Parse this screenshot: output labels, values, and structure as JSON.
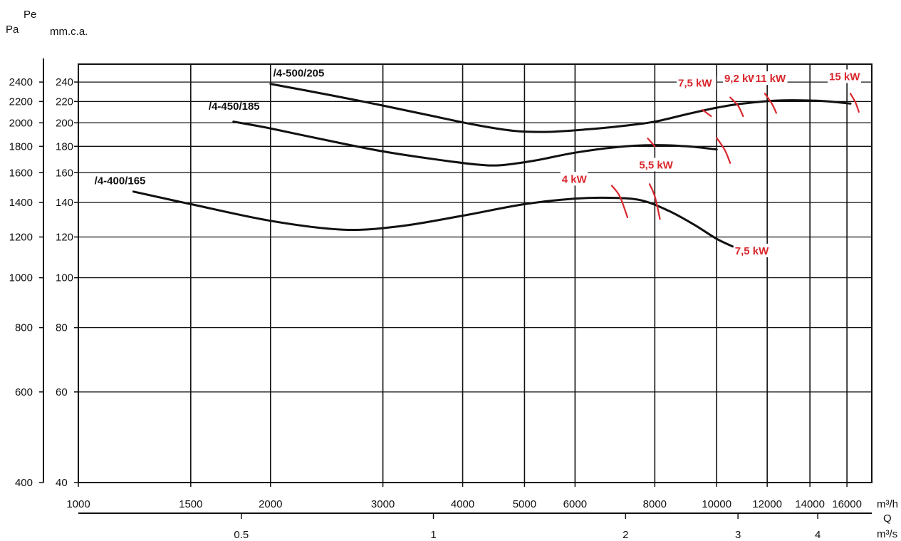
{
  "chart_data": {
    "type": "line",
    "x_scale": "log",
    "y_scale": "log",
    "grid": true,
    "xlim": [
      1000,
      17500
    ],
    "ylim_mmca": [
      40,
      260
    ],
    "units": {
      "y_left_top": "Pe",
      "y_left": "Pa",
      "y_right": "mm.c.a.",
      "x_flow_h": "m³/h",
      "x_q": "Q",
      "x_flow_s": "m³/s"
    },
    "x_ticks": [
      {
        "value": 1000,
        "label": "1000"
      },
      {
        "value": 1500,
        "label": "1500"
      },
      {
        "value": 2000,
        "label": "2000"
      },
      {
        "value": 3000,
        "label": "3000"
      },
      {
        "value": 4000,
        "label": "4000"
      },
      {
        "value": 5000,
        "label": "5000"
      },
      {
        "value": 6000,
        "label": "6000"
      },
      {
        "value": 8000,
        "label": "8000"
      },
      {
        "value": 10000,
        "label": "10000"
      },
      {
        "value": 12000,
        "label": "12000"
      },
      {
        "value": 14000,
        "label": "14000"
      },
      {
        "value": 16000,
        "label": "16000"
      }
    ],
    "x_grid": [
      1000,
      1500,
      2000,
      3000,
      4000,
      5000,
      6000,
      8000,
      10000,
      12000,
      14000,
      16000,
      17500
    ],
    "x2_ticks": [
      {
        "value": 1800,
        "label": "0.5"
      },
      {
        "value": 3600,
        "label": "1"
      },
      {
        "value": 7200,
        "label": "2"
      },
      {
        "value": 10800,
        "label": "3"
      },
      {
        "value": 14400,
        "label": "4"
      }
    ],
    "y_ticks_mmca": [
      {
        "value": 40,
        "label": "40"
      },
      {
        "value": 60,
        "label": "60"
      },
      {
        "value": 80,
        "label": "80"
      },
      {
        "value": 100,
        "label": "100"
      },
      {
        "value": 120,
        "label": "120"
      },
      {
        "value": 140,
        "label": "140"
      },
      {
        "value": 160,
        "label": "160"
      },
      {
        "value": 180,
        "label": "180"
      },
      {
        "value": 200,
        "label": "200"
      },
      {
        "value": 220,
        "label": "220"
      },
      {
        "value": 240,
        "label": "240"
      }
    ],
    "y_ticks_pa": [
      {
        "value": 400,
        "label": "400"
      },
      {
        "value": 600,
        "label": "600"
      },
      {
        "value": 800,
        "label": "800"
      },
      {
        "value": 1000,
        "label": "1000"
      },
      {
        "value": 1200,
        "label": "1200"
      },
      {
        "value": 1400,
        "label": "1400"
      },
      {
        "value": 1600,
        "label": "1600"
      },
      {
        "value": 1800,
        "label": "1800"
      },
      {
        "value": 2000,
        "label": "2000"
      },
      {
        "value": 2200,
        "label": "2200"
      },
      {
        "value": 2400,
        "label": "2400"
      }
    ],
    "series": [
      {
        "name": "/4-400/165",
        "points": [
          [
            1220,
            147
          ],
          [
            1500,
            139
          ],
          [
            2000,
            129
          ],
          [
            2600,
            124
          ],
          [
            3200,
            126
          ],
          [
            4000,
            132
          ],
          [
            5000,
            139
          ],
          [
            6000,
            142.5
          ],
          [
            6800,
            143
          ],
          [
            7600,
            141.5
          ],
          [
            8400,
            135
          ],
          [
            9200,
            127
          ],
          [
            10000,
            119
          ],
          [
            10600,
            115
          ]
        ]
      },
      {
        "name": "/4-450/185",
        "points": [
          [
            1750,
            201
          ],
          [
            2000,
            195
          ],
          [
            2500,
            184
          ],
          [
            3000,
            176
          ],
          [
            3600,
            170
          ],
          [
            4200,
            166
          ],
          [
            4600,
            165.5
          ],
          [
            5200,
            169
          ],
          [
            6000,
            175
          ],
          [
            7000,
            179.5
          ],
          [
            8000,
            181
          ],
          [
            9000,
            180
          ],
          [
            10000,
            177.5
          ]
        ]
      },
      {
        "name": "/4-500/205",
        "points": [
          [
            2000,
            238
          ],
          [
            2500,
            226
          ],
          [
            3000,
            216
          ],
          [
            3600,
            206
          ],
          [
            4200,
            198
          ],
          [
            4800,
            193
          ],
          [
            5400,
            192
          ],
          [
            6200,
            194
          ],
          [
            7200,
            197.5
          ],
          [
            8000,
            201
          ],
          [
            9000,
            208
          ],
          [
            10000,
            214
          ],
          [
            11000,
            218
          ],
          [
            12500,
            221
          ],
          [
            14000,
            221
          ],
          [
            15000,
            220
          ],
          [
            16200,
            218
          ]
        ]
      }
    ],
    "power_marks": [
      {
        "label": "4 kW",
        "points": [
          [
            6850,
            151
          ],
          [
            7050,
            144
          ],
          [
            7250,
            131
          ]
        ]
      },
      {
        "label": "5,5 kW",
        "points": [
          [
            7850,
            152
          ],
          [
            8000,
            144
          ],
          [
            8150,
            130
          ]
        ]
      },
      {
        "label": "5,5 kW",
        "points": [
          [
            7800,
            186.5
          ],
          [
            8000,
            180
          ]
        ]
      },
      {
        "label": "7,5 kW",
        "points": [
          [
            9500,
            212
          ],
          [
            9800,
            206
          ]
        ]
      },
      {
        "label": "7,5 kW",
        "points": [
          [
            10000,
            187
          ],
          [
            10300,
            177
          ],
          [
            10500,
            167
          ]
        ]
      },
      {
        "label": "9,2 kW",
        "points": [
          [
            10500,
            224
          ],
          [
            10800,
            216
          ],
          [
            11000,
            206
          ]
        ]
      },
      {
        "label": "11 kW",
        "points": [
          [
            11900,
            228
          ],
          [
            12200,
            218
          ],
          [
            12400,
            209
          ]
        ]
      },
      {
        "label": "15 kW",
        "points": [
          [
            16200,
            228
          ],
          [
            16500,
            219
          ],
          [
            16700,
            210
          ]
        ]
      }
    ],
    "annotations": [
      {
        "text": "/4-500/205",
        "x": 2020,
        "y": 246
      },
      {
        "text": "/4-450/185",
        "x": 1600,
        "y": 212
      },
      {
        "text": "/4-400/165",
        "x": 1060,
        "y": 152
      },
      {
        "text": "7,5 kW",
        "x": 8700,
        "y": 235
      },
      {
        "text": "9,2 kW",
        "x": 10280,
        "y": 240
      },
      {
        "text": "11 kW",
        "x": 11500,
        "y": 240
      },
      {
        "text": "15 kW",
        "x": 15000,
        "y": 242
      },
      {
        "text": "4 kW",
        "x": 5720,
        "y": 153
      },
      {
        "text": "5,5 kW",
        "x": 7560,
        "y": 163
      },
      {
        "text": "7,5 kW",
        "x": 10680,
        "y": 111
      }
    ]
  }
}
